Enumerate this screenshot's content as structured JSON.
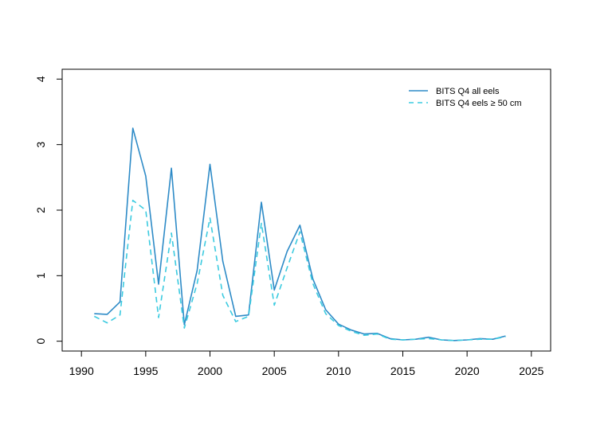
{
  "chart_data": {
    "type": "line",
    "title": "",
    "xlabel": "",
    "ylabel": "",
    "xlim": [
      1988.5,
      2026.5
    ],
    "ylim": [
      -0.15,
      4.15
    ],
    "x_ticks": [
      1990,
      1995,
      2000,
      2005,
      2010,
      2015,
      2020,
      2025
    ],
    "y_ticks": [
      0,
      1,
      2,
      3,
      4
    ],
    "grid": false,
    "legend_position": "top-right",
    "x": [
      1991,
      1992,
      1993,
      1994,
      1995,
      1996,
      1997,
      1998,
      1999,
      2000,
      2001,
      2002,
      2003,
      2004,
      2005,
      2006,
      2007,
      2008,
      2009,
      2010,
      2011,
      2012,
      2013,
      2014,
      2015,
      2016,
      2017,
      2018,
      2019,
      2020,
      2021,
      2022,
      2023
    ],
    "series": [
      {
        "name": "BITS Q4 all eels",
        "color": "#2e8bc7",
        "dash": "solid",
        "values": [
          0.42,
          0.41,
          0.6,
          3.25,
          2.52,
          0.87,
          2.64,
          0.25,
          1.08,
          2.7,
          1.22,
          0.38,
          0.4,
          2.12,
          0.78,
          1.37,
          1.77,
          0.95,
          0.48,
          0.26,
          0.17,
          0.11,
          0.12,
          0.04,
          0.02,
          0.03,
          0.06,
          0.02,
          0.01,
          0.02,
          0.04,
          0.03,
          0.08
        ]
      },
      {
        "name": "BITS Q4 eels ≥ 50 cm",
        "color": "#3ccbe0",
        "dash": "dashed",
        "values": [
          0.38,
          0.28,
          0.4,
          2.15,
          2.0,
          0.36,
          1.65,
          0.2,
          0.88,
          1.88,
          0.7,
          0.3,
          0.38,
          1.8,
          0.55,
          1.12,
          1.67,
          0.88,
          0.42,
          0.24,
          0.15,
          0.09,
          0.11,
          0.03,
          0.02,
          0.03,
          0.04,
          0.02,
          0.01,
          0.02,
          0.03,
          0.03,
          0.07
        ]
      }
    ]
  }
}
